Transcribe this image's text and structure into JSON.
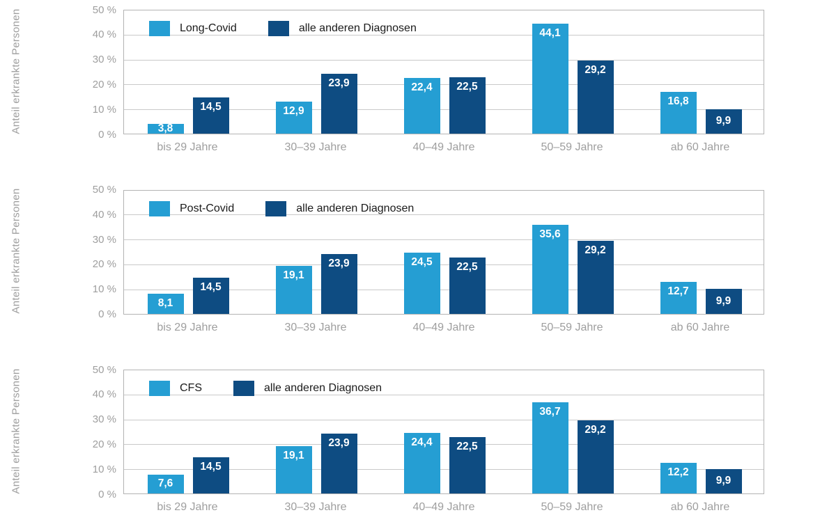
{
  "y_axis_title": "Anteil erkrankte Personen",
  "colors": {
    "series1": "#259ED3",
    "series2": "#0E4C82",
    "gridline": "#C9C9C9",
    "plot_border": "#B3B3B3",
    "axis_text": "#9E9E9E",
    "legend_text": "#1A1A1A",
    "value_text": "#FFFFFF"
  },
  "chart_data": [
    {
      "type": "bar",
      "title": "",
      "ylabel": "Anteil erkrankte Personen",
      "xlabel": "",
      "ylim": [
        0,
        50
      ],
      "yticks": [
        "0 %",
        "10 %",
        "20 %",
        "30 %",
        "40 %",
        "50 %"
      ],
      "grid": true,
      "legend_position": "top-left-inside",
      "categories": [
        "bis 29 Jahre",
        "30–39 Jahre",
        "40–49 Jahre",
        "50–59 Jahre",
        "ab 60 Jahre"
      ],
      "series": [
        {
          "name": "Long-Covid",
          "color": "#259ED3",
          "values": [
            3.8,
            12.9,
            22.4,
            44.1,
            16.8
          ],
          "labels": [
            "3,8",
            "12,9",
            "22,4",
            "44,1",
            "16,8"
          ]
        },
        {
          "name": "alle anderen Diagnosen",
          "color": "#0E4C82",
          "values": [
            14.5,
            23.9,
            22.5,
            29.2,
            9.9
          ],
          "labels": [
            "14,5",
            "23,9",
            "22,5",
            "29,2",
            "9,9"
          ]
        }
      ]
    },
    {
      "type": "bar",
      "title": "",
      "ylabel": "Anteil erkrankte Personen",
      "xlabel": "",
      "ylim": [
        0,
        50
      ],
      "yticks": [
        "0 %",
        "10 %",
        "20 %",
        "30 %",
        "40 %",
        "50 %"
      ],
      "grid": true,
      "legend_position": "top-left-inside",
      "categories": [
        "bis 29 Jahre",
        "30–39 Jahre",
        "40–49 Jahre",
        "50–59 Jahre",
        "ab 60 Jahre"
      ],
      "series": [
        {
          "name": "Post-Covid",
          "color": "#259ED3",
          "values": [
            8.1,
            19.1,
            24.5,
            35.6,
            12.7
          ],
          "labels": [
            "8,1",
            "19,1",
            "24,5",
            "35,6",
            "12,7"
          ]
        },
        {
          "name": "alle anderen Diagnosen",
          "color": "#0E4C82",
          "values": [
            14.5,
            23.9,
            22.5,
            29.2,
            9.9
          ],
          "labels": [
            "14,5",
            "23,9",
            "22,5",
            "29,2",
            "9,9"
          ]
        }
      ]
    },
    {
      "type": "bar",
      "title": "",
      "ylabel": "Anteil erkrankte Personen",
      "xlabel": "",
      "ylim": [
        0,
        50
      ],
      "yticks": [
        "0 %",
        "10 %",
        "20 %",
        "30 %",
        "40 %",
        "50 %"
      ],
      "grid": true,
      "legend_position": "top-left-inside",
      "categories": [
        "bis 29 Jahre",
        "30–39 Jahre",
        "40–49 Jahre",
        "50–59 Jahre",
        "ab 60 Jahre"
      ],
      "series": [
        {
          "name": "CFS",
          "color": "#259ED3",
          "values": [
            7.6,
            19.1,
            24.4,
            36.7,
            12.2
          ],
          "labels": [
            "7,6",
            "19,1",
            "24,4",
            "36,7",
            "12,2"
          ]
        },
        {
          "name": "alle anderen Diagnosen",
          "color": "#0E4C82",
          "values": [
            14.5,
            23.9,
            22.5,
            29.2,
            9.9
          ],
          "labels": [
            "14,5",
            "23,9",
            "22,5",
            "29,2",
            "9,9"
          ]
        }
      ]
    }
  ]
}
